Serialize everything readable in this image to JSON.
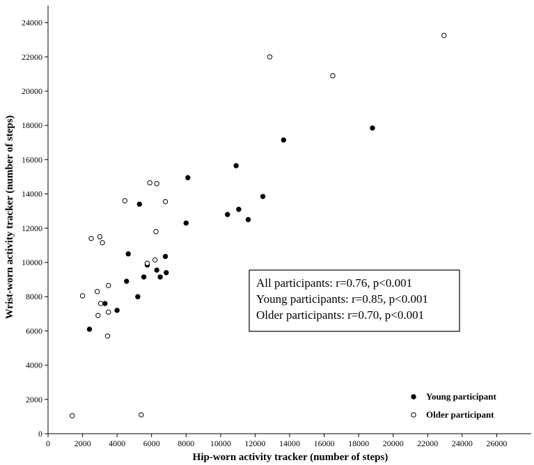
{
  "chart_data": {
    "type": "scatter",
    "xlabel": "Hip-worn activity tracker (number of steps)",
    "ylabel": "Wrist-worn activity tracker (number of steps)",
    "xlim": [
      0,
      28000
    ],
    "ylim": [
      0,
      25000
    ],
    "x_ticks": [
      0,
      2000,
      4000,
      6000,
      8000,
      10000,
      12000,
      14000,
      16000,
      18000,
      20000,
      22000,
      24000,
      26000
    ],
    "y_ticks": [
      0,
      2000,
      4000,
      6000,
      8000,
      10000,
      12000,
      14000,
      16000,
      18000,
      20000,
      22000,
      24000
    ],
    "grid": false,
    "legend_position": "bottom-right",
    "annotation": [
      "All participants: r=0.76, p<0.001",
      "Young participants: r=0.85, p<0.001",
      "Older participants: r=0.70, p<0.001"
    ],
    "series": [
      {
        "name": "Young participant",
        "marker": "filled-circle",
        "color": "#000000",
        "points": [
          [
            2400,
            6100
          ],
          [
            3300,
            7600
          ],
          [
            4000,
            7200
          ],
          [
            4550,
            8900
          ],
          [
            4650,
            10500
          ],
          [
            5200,
            8000
          ],
          [
            5300,
            13400
          ],
          [
            5550,
            9150
          ],
          [
            5750,
            9850
          ],
          [
            6300,
            9550
          ],
          [
            6500,
            9150
          ],
          [
            6800,
            10350
          ],
          [
            6850,
            9400
          ],
          [
            8000,
            12300
          ],
          [
            8100,
            14950
          ],
          [
            10400,
            12800
          ],
          [
            10900,
            15650
          ],
          [
            11050,
            13100
          ],
          [
            11600,
            12500
          ],
          [
            12450,
            13850
          ],
          [
            13650,
            17150
          ],
          [
            18800,
            17850
          ]
        ]
      },
      {
        "name": "Older participant",
        "marker": "open-circle",
        "color": "#000000",
        "points": [
          [
            1400,
            1050
          ],
          [
            2000,
            8050
          ],
          [
            2500,
            11400
          ],
          [
            2850,
            8300
          ],
          [
            2900,
            6900
          ],
          [
            3000,
            11500
          ],
          [
            3050,
            7600
          ],
          [
            3150,
            11150
          ],
          [
            3450,
            5700
          ],
          [
            3500,
            7100
          ],
          [
            3500,
            8650
          ],
          [
            4450,
            13600
          ],
          [
            5400,
            1100
          ],
          [
            5750,
            9950
          ],
          [
            5900,
            14650
          ],
          [
            6200,
            10150
          ],
          [
            6250,
            11800
          ],
          [
            6300,
            14600
          ],
          [
            6800,
            13550
          ],
          [
            12850,
            22000
          ],
          [
            16500,
            20900
          ],
          [
            22950,
            23250
          ]
        ]
      }
    ]
  }
}
